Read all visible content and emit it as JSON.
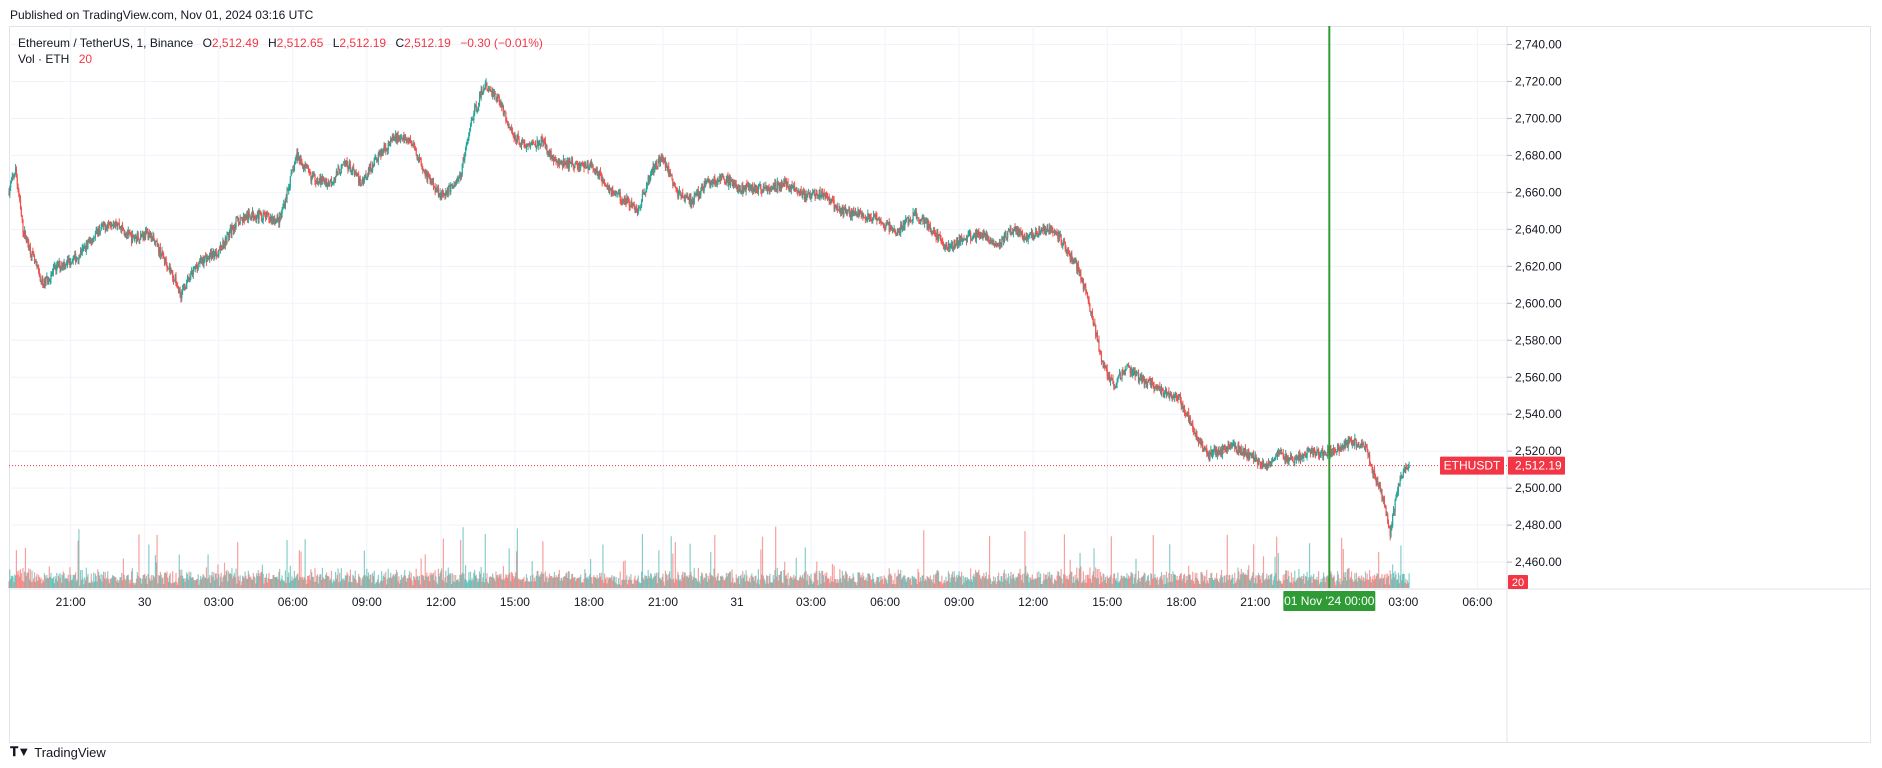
{
  "header": {
    "published": "Published on TradingView.com, Nov 01, 2024 03:16 UTC"
  },
  "legend": {
    "symbol": "Ethereum / TetherUS, 1, Binance",
    "o_label": "O",
    "o_value": "2,512.49",
    "h_label": "H",
    "h_value": "2,512.65",
    "l_label": "L",
    "l_value": "2,512.19",
    "c_label": "C",
    "c_value": "2,512.19",
    "change": "−0.30 (−0.01%)",
    "vol_label": "Vol · ETH",
    "vol_value": "20"
  },
  "price_tag": {
    "symbol": "ETHUSDT",
    "price": "2,512.19"
  },
  "volume_tag": "20",
  "crosshair_label": "01 Nov '24   00:00",
  "footer": {
    "brand": "TradingView"
  },
  "colors": {
    "up": "#26a69a",
    "down": "#ef5350",
    "price_line": "#f23645",
    "crosshair": "#2e9b35",
    "grid": "#f0f3fa"
  },
  "chart_data": {
    "type": "candlestick",
    "symbol": "ETHUSDT",
    "interval": "1 minute",
    "y_ticks": [
      "2,460.00",
      "2,480.00",
      "2,500.00",
      "2,520.00",
      "2,540.00",
      "2,560.00",
      "2,580.00",
      "2,600.00",
      "2,620.00",
      "2,640.00",
      "2,660.00",
      "2,680.00",
      "2,700.00",
      "2,720.00",
      "2,740.00"
    ],
    "ylim": [
      2446,
      2750
    ],
    "x_ticks": [
      {
        "label": "21:00",
        "h": 21
      },
      {
        "label": "30",
        "h": 24
      },
      {
        "label": "03:00",
        "h": 27
      },
      {
        "label": "06:00",
        "h": 30
      },
      {
        "label": "09:00",
        "h": 33
      },
      {
        "label": "12:00",
        "h": 36
      },
      {
        "label": "15:00",
        "h": 39
      },
      {
        "label": "18:00",
        "h": 42
      },
      {
        "label": "21:00",
        "h": 45
      },
      {
        "label": "31",
        "h": 48
      },
      {
        "label": "03:00",
        "h": 51
      },
      {
        "label": "06:00",
        "h": 54
      },
      {
        "label": "09:00",
        "h": 57
      },
      {
        "label": "12:00",
        "h": 60
      },
      {
        "label": "15:00",
        "h": 63
      },
      {
        "label": "18:00",
        "h": 66
      },
      {
        "label": "21:00",
        "h": 69
      },
      {
        "label": "03:00",
        "h": 75
      },
      {
        "label": "06:00",
        "h": 78
      }
    ],
    "x_domain_hours": [
      18.5,
      79.2
    ],
    "data_end_hour": 75.27,
    "crosshair_hour": 72,
    "last_price": 2512.19,
    "price_path": [
      [
        18.5,
        2660
      ],
      [
        18.8,
        2672
      ],
      [
        19.1,
        2640
      ],
      [
        19.5,
        2625
      ],
      [
        19.9,
        2610
      ],
      [
        20.5,
        2620
      ],
      [
        21.3,
        2625
      ],
      [
        22.2,
        2640
      ],
      [
        22.8,
        2645
      ],
      [
        23.5,
        2635
      ],
      [
        24.2,
        2638
      ],
      [
        25.0,
        2620
      ],
      [
        25.5,
        2605
      ],
      [
        26.2,
        2622
      ],
      [
        27.0,
        2628
      ],
      [
        27.8,
        2645
      ],
      [
        28.5,
        2648
      ],
      [
        29.5,
        2645
      ],
      [
        30.2,
        2680
      ],
      [
        30.8,
        2668
      ],
      [
        31.5,
        2665
      ],
      [
        32.2,
        2676
      ],
      [
        32.8,
        2665
      ],
      [
        33.5,
        2680
      ],
      [
        34.2,
        2690
      ],
      [
        34.8,
        2688
      ],
      [
        35.5,
        2668
      ],
      [
        36.1,
        2658
      ],
      [
        36.8,
        2668
      ],
      [
        37.3,
        2700
      ],
      [
        37.8,
        2718
      ],
      [
        38.4,
        2710
      ],
      [
        38.9,
        2692
      ],
      [
        39.5,
        2685
      ],
      [
        40.1,
        2688
      ],
      [
        40.7,
        2676
      ],
      [
        41.4,
        2675
      ],
      [
        42.2,
        2674
      ],
      [
        43.0,
        2660
      ],
      [
        43.6,
        2655
      ],
      [
        44.0,
        2650
      ],
      [
        44.6,
        2672
      ],
      [
        45.0,
        2680
      ],
      [
        45.6,
        2660
      ],
      [
        46.2,
        2655
      ],
      [
        46.8,
        2665
      ],
      [
        47.5,
        2667
      ],
      [
        48.3,
        2662
      ],
      [
        49.2,
        2662
      ],
      [
        50.0,
        2665
      ],
      [
        50.8,
        2658
      ],
      [
        51.5,
        2660
      ],
      [
        52.2,
        2650
      ],
      [
        53.0,
        2648
      ],
      [
        53.8,
        2645
      ],
      [
        54.5,
        2638
      ],
      [
        55.2,
        2648
      ],
      [
        55.8,
        2642
      ],
      [
        56.5,
        2630
      ],
      [
        57.2,
        2635
      ],
      [
        58.0,
        2638
      ],
      [
        58.6,
        2632
      ],
      [
        59.2,
        2640
      ],
      [
        59.8,
        2635
      ],
      [
        60.4,
        2640
      ],
      [
        61.0,
        2638
      ],
      [
        61.8,
        2620
      ],
      [
        62.3,
        2600
      ],
      [
        62.8,
        2570
      ],
      [
        63.3,
        2555
      ],
      [
        63.8,
        2565
      ],
      [
        64.3,
        2560
      ],
      [
        64.8,
        2556
      ],
      [
        65.4,
        2552
      ],
      [
        66.0,
        2548
      ],
      [
        66.6,
        2530
      ],
      [
        67.1,
        2518
      ],
      [
        67.6,
        2520
      ],
      [
        68.2,
        2522
      ],
      [
        68.8,
        2518
      ],
      [
        69.4,
        2512
      ],
      [
        70.0,
        2518
      ],
      [
        70.6,
        2516
      ],
      [
        71.2,
        2520
      ],
      [
        71.8,
        2519
      ],
      [
        72.4,
        2522
      ],
      [
        73.0,
        2526
      ],
      [
        73.5,
        2522
      ],
      [
        73.9,
        2505
      ],
      [
        74.2,
        2495
      ],
      [
        74.5,
        2475
      ],
      [
        74.8,
        2500
      ],
      [
        75.0,
        2508
      ],
      [
        75.27,
        2512.19
      ]
    ]
  }
}
